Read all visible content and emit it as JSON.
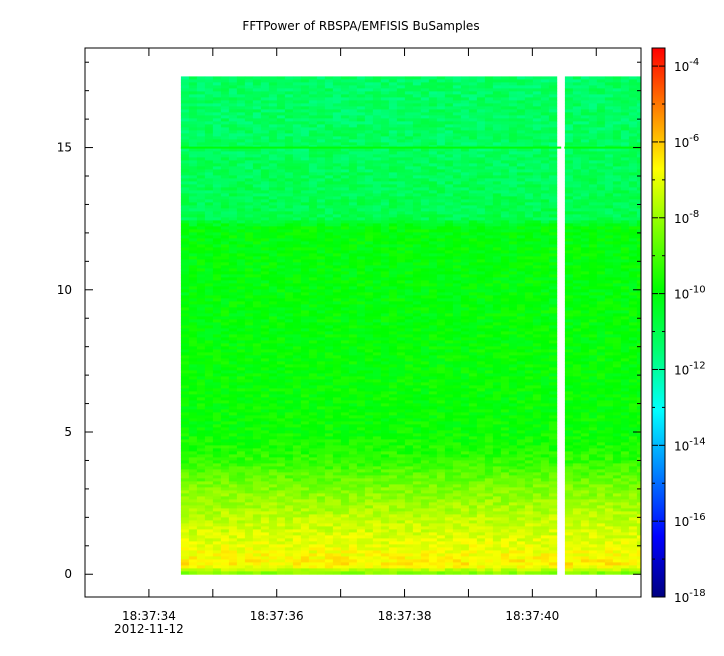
{
  "chart_data": {
    "type": "heatmap",
    "title": "FFTPower of RBSPA/EMFISIS  BuSamples",
    "xlabel": "",
    "ylabel": "",
    "x_range": [
      "18:37:33.0",
      "18:37:41.7"
    ],
    "ylim": [
      -0.8,
      18.5
    ],
    "y_ticks": [
      {
        "value": 0,
        "label": "0"
      },
      {
        "value": 5,
        "label": "5"
      },
      {
        "value": 10,
        "label": "10"
      },
      {
        "value": 15,
        "label": "15"
      }
    ],
    "x_ticks": [
      {
        "value": "18:37:34",
        "label": "18:37:34",
        "sublabel": "2012-11-12"
      },
      {
        "value": "18:37:35",
        "label": ""
      },
      {
        "value": "18:37:36",
        "label": "18:37:36"
      },
      {
        "value": "18:37:37",
        "label": ""
      },
      {
        "value": "18:37:38",
        "label": "18:37:38"
      },
      {
        "value": "18:37:39",
        "label": ""
      },
      {
        "value": "18:37:40",
        "label": "18:37:40"
      },
      {
        "value": "18:37:41",
        "label": ""
      }
    ],
    "data_time_start": "18:37:34.5",
    "data_time_end": "18:37:41.7",
    "data_gap": {
      "start": "18:37:40.45",
      "end": "18:37:40.5"
    },
    "frequency_range": [
      0,
      17.5
    ],
    "colorbar": {
      "scale": "log",
      "range": [
        1e-18,
        0.0003
      ],
      "colormap": "rainbow",
      "ticks": [
        {
          "value": 0.0001,
          "base": "10",
          "exp": "-4"
        },
        {
          "value": 1e-06,
          "base": "10",
          "exp": "-6"
        },
        {
          "value": 1e-08,
          "base": "10",
          "exp": "-8"
        },
        {
          "value": 1e-10,
          "base": "10",
          "exp": "-10"
        },
        {
          "value": 1e-12,
          "base": "10",
          "exp": "-12"
        },
        {
          "value": 1e-14,
          "base": "10",
          "exp": "-14"
        },
        {
          "value": 1e-16,
          "base": "10",
          "exp": "-16"
        },
        {
          "value": 1e-18,
          "base": "10",
          "exp": "-18"
        }
      ]
    },
    "power_profile": [
      {
        "freq": 0.0,
        "power": 3e-09
      },
      {
        "freq": 0.3,
        "power": 3e-07
      },
      {
        "freq": 0.6,
        "power": 2e-07
      },
      {
        "freq": 1.0,
        "power": 1e-07
      },
      {
        "freq": 2.0,
        "power": 3e-08
      },
      {
        "freq": 3.0,
        "power": 5e-09
      },
      {
        "freq": 4.0,
        "power": 5e-10
      },
      {
        "freq": 5.0,
        "power": 1.5e-10
      },
      {
        "freq": 10.0,
        "power": 1e-10
      },
      {
        "freq": 12.2,
        "power": 1e-10
      },
      {
        "freq": 12.5,
        "power": 1e-11
      },
      {
        "freq": 15.0,
        "power": 6e-12
      },
      {
        "freq": 17.5,
        "power": 5e-12
      }
    ],
    "spectral_line": {
      "freq": 15.0,
      "power": 1e-10
    }
  }
}
